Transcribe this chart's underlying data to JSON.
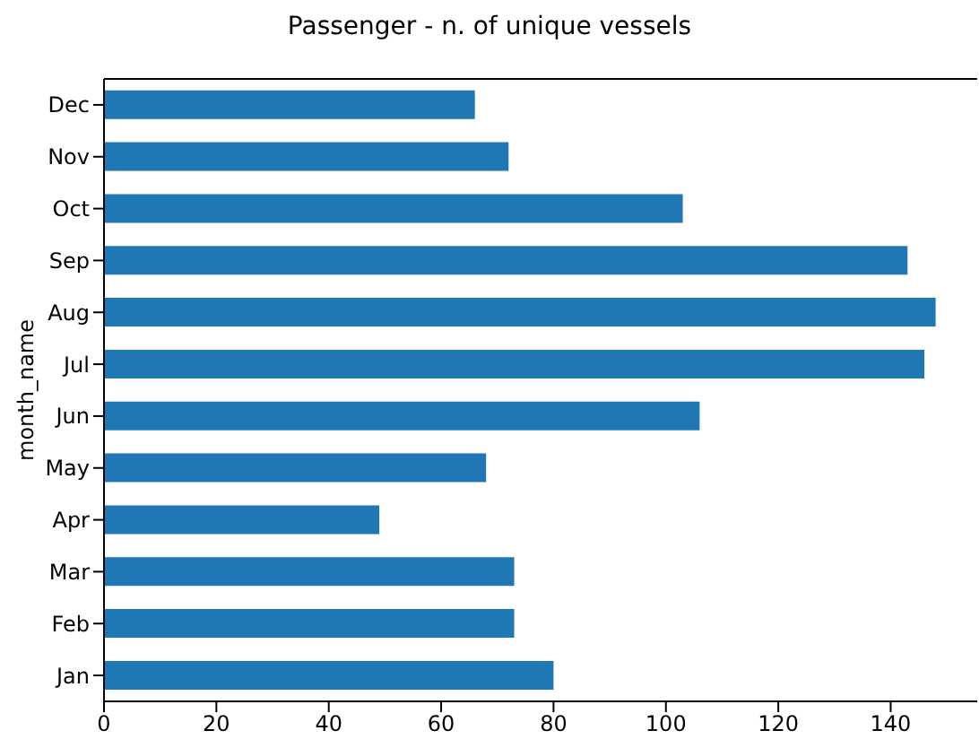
{
  "chart_data": {
    "type": "bar",
    "orientation": "horizontal",
    "title": "Passenger - n. of unique vessels",
    "ylabel": "month_name",
    "categories": [
      "Dec",
      "Nov",
      "Oct",
      "Sep",
      "Aug",
      "Jul",
      "Jun",
      "May",
      "Apr",
      "Mar",
      "Feb",
      "Jan"
    ],
    "values": [
      66,
      72,
      103,
      143,
      148,
      146,
      106,
      68,
      49,
      73,
      73,
      80
    ],
    "color": "#1f77b4",
    "xlim": [
      0,
      155.4
    ],
    "xticks": [
      0,
      20,
      40,
      60,
      80,
      100,
      120,
      140
    ],
    "grid": false,
    "legend": false
  }
}
